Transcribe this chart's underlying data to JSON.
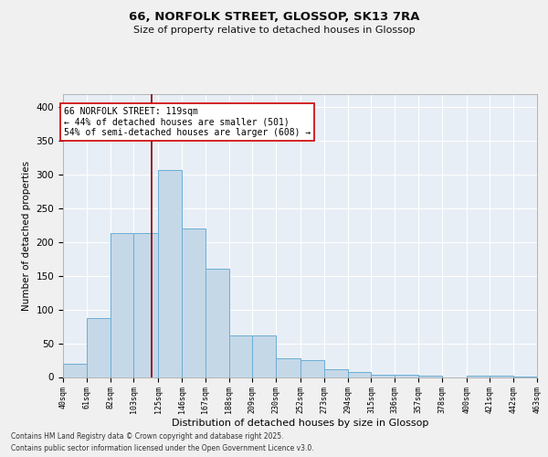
{
  "title1": "66, NORFOLK STREET, GLOSSOP, SK13 7RA",
  "title2": "Size of property relative to detached houses in Glossop",
  "xlabel": "Distribution of detached houses by size in Glossop",
  "ylabel": "Number of detached properties",
  "annotation_title": "66 NORFOLK STREET: 119sqm",
  "annotation_line1": "← 44% of detached houses are smaller (501)",
  "annotation_line2": "54% of semi-detached houses are larger (608) →",
  "property_size": 119,
  "bar_left_edges": [
    40,
    61,
    82,
    103,
    125,
    146,
    167,
    188,
    209,
    230,
    252,
    273,
    294,
    315,
    336,
    357,
    378,
    400,
    421,
    442
  ],
  "bar_widths": [
    21,
    21,
    21,
    22,
    21,
    21,
    21,
    21,
    21,
    22,
    21,
    21,
    21,
    21,
    21,
    21,
    22,
    21,
    21,
    21
  ],
  "bar_heights": [
    20,
    88,
    213,
    213,
    307,
    220,
    160,
    62,
    62,
    28,
    25,
    12,
    7,
    4,
    3,
    2,
    0,
    2,
    2,
    1
  ],
  "tick_labels": [
    "40sqm",
    "61sqm",
    "82sqm",
    "103sqm",
    "125sqm",
    "146sqm",
    "167sqm",
    "188sqm",
    "209sqm",
    "230sqm",
    "252sqm",
    "273sqm",
    "294sqm",
    "315sqm",
    "336sqm",
    "357sqm",
    "378sqm",
    "400sqm",
    "421sqm",
    "442sqm",
    "463sqm"
  ],
  "bar_color": "#C5D8E8",
  "bar_edge_color": "#6BAED6",
  "line_color": "#8B0000",
  "annotation_box_color": "#CC0000",
  "bg_color": "#E8EEF5",
  "grid_color": "#FFFFFF",
  "ylim": [
    0,
    420
  ],
  "yticks": [
    0,
    50,
    100,
    150,
    200,
    250,
    300,
    350,
    400
  ],
  "footer1": "Contains HM Land Registry data © Crown copyright and database right 2025.",
  "footer2": "Contains public sector information licensed under the Open Government Licence v3.0."
}
